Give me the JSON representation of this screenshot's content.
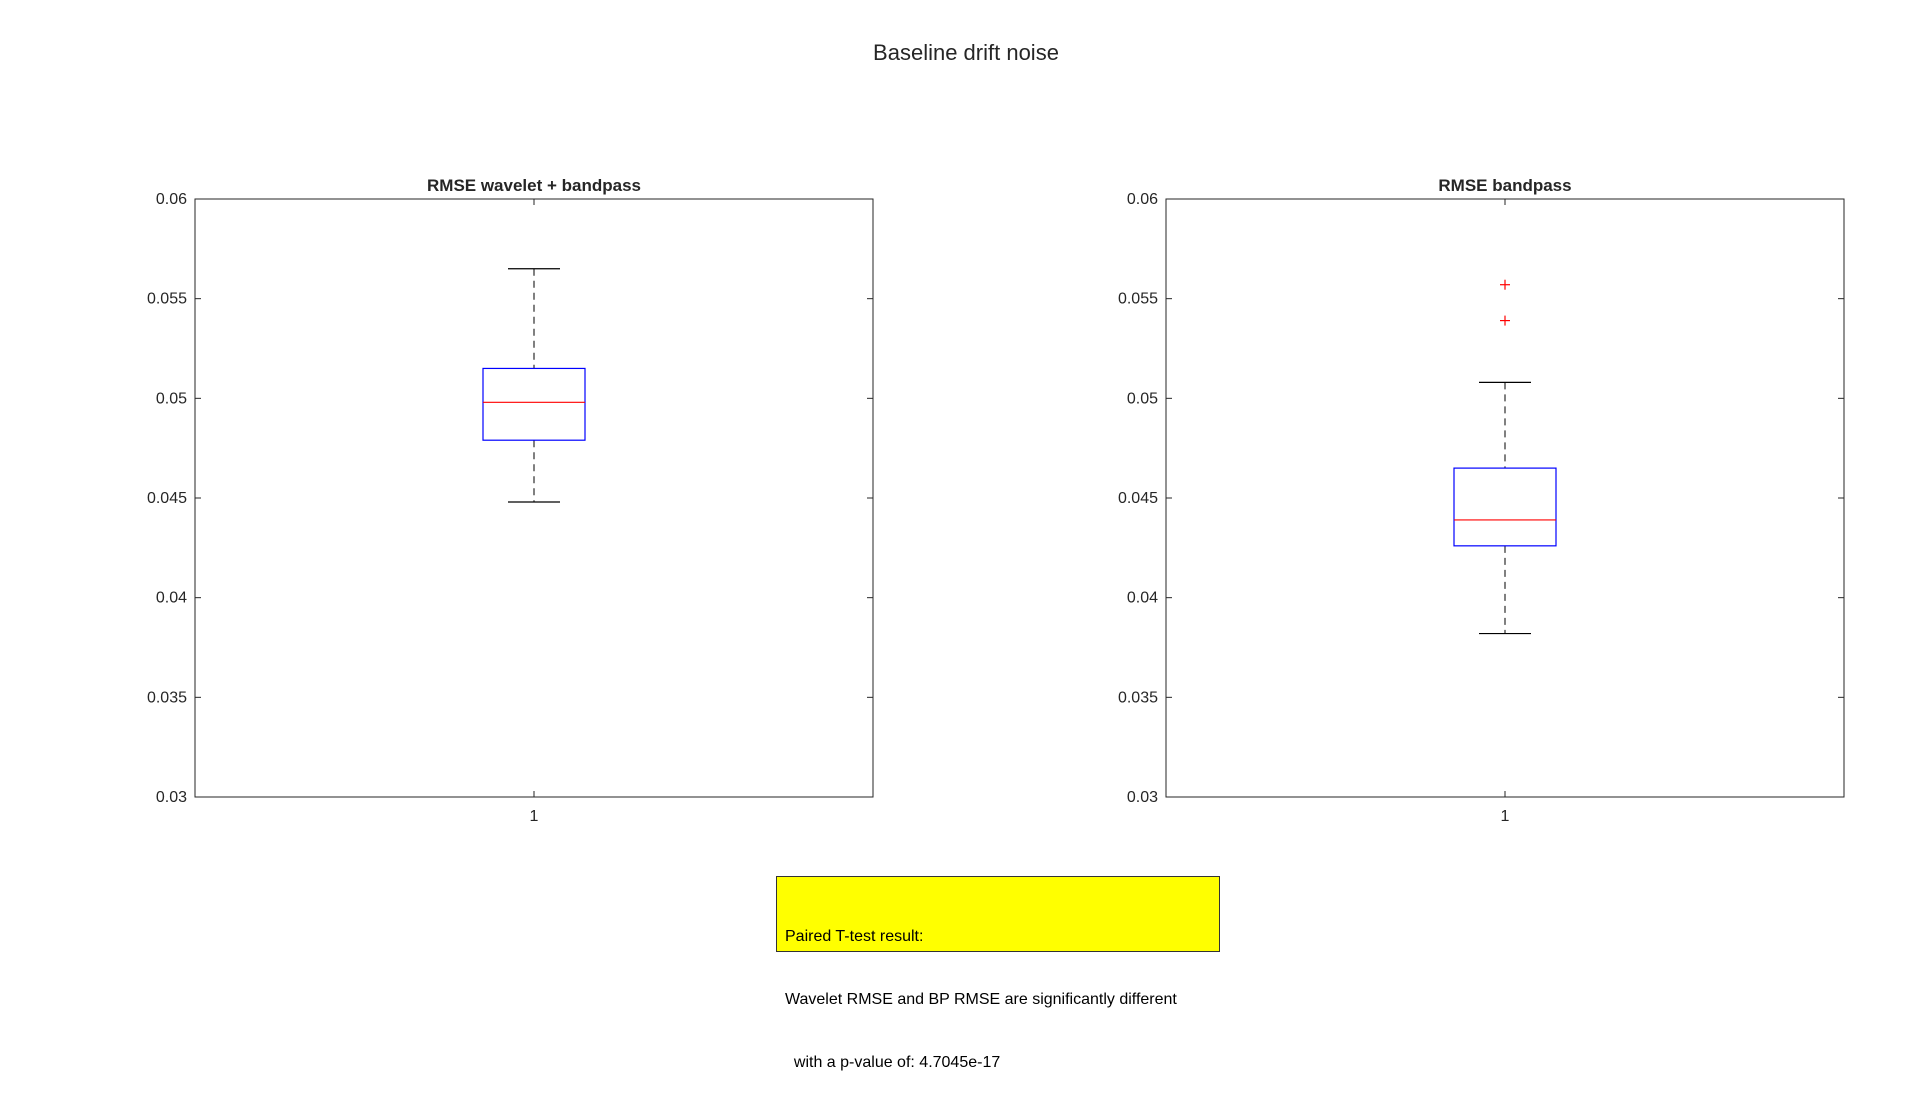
{
  "figure": {
    "title": "Baseline drift noise"
  },
  "chart_data": [
    {
      "type": "boxplot",
      "title": "RMSE wavelet + bandpass",
      "categories": [
        "1"
      ],
      "ylim": [
        0.03,
        0.06
      ],
      "yticks": [
        "0.03",
        "0.035",
        "0.04",
        "0.045",
        "0.05",
        "0.055",
        "0.06"
      ],
      "box": {
        "whisker_low": 0.0448,
        "q1": 0.0479,
        "median": 0.0498,
        "q3": 0.0515,
        "whisker_high": 0.0565
      },
      "outliers": [],
      "colors": {
        "box": "#0000ff",
        "median": "#ff0000",
        "whisker": "#000000",
        "outlier": "#ff0000"
      }
    },
    {
      "type": "boxplot",
      "title": "RMSE bandpass",
      "categories": [
        "1"
      ],
      "ylim": [
        0.03,
        0.06
      ],
      "yticks": [
        "0.03",
        "0.035",
        "0.04",
        "0.045",
        "0.05",
        "0.055",
        "0.06"
      ],
      "box": {
        "whisker_low": 0.0382,
        "q1": 0.0426,
        "median": 0.0439,
        "q3": 0.0465,
        "whisker_high": 0.0508
      },
      "outliers": [
        0.0557,
        0.0539
      ],
      "colors": {
        "box": "#0000ff",
        "median": "#ff0000",
        "whisker": "#000000",
        "outlier": "#ff0000"
      }
    }
  ],
  "annotation": {
    "lines": [
      "Paired T-test result:",
      "Wavelet RMSE and BP RMSE are significantly different",
      "  with a p-value of: 4.7045e-17"
    ],
    "background": "#ffff00"
  }
}
